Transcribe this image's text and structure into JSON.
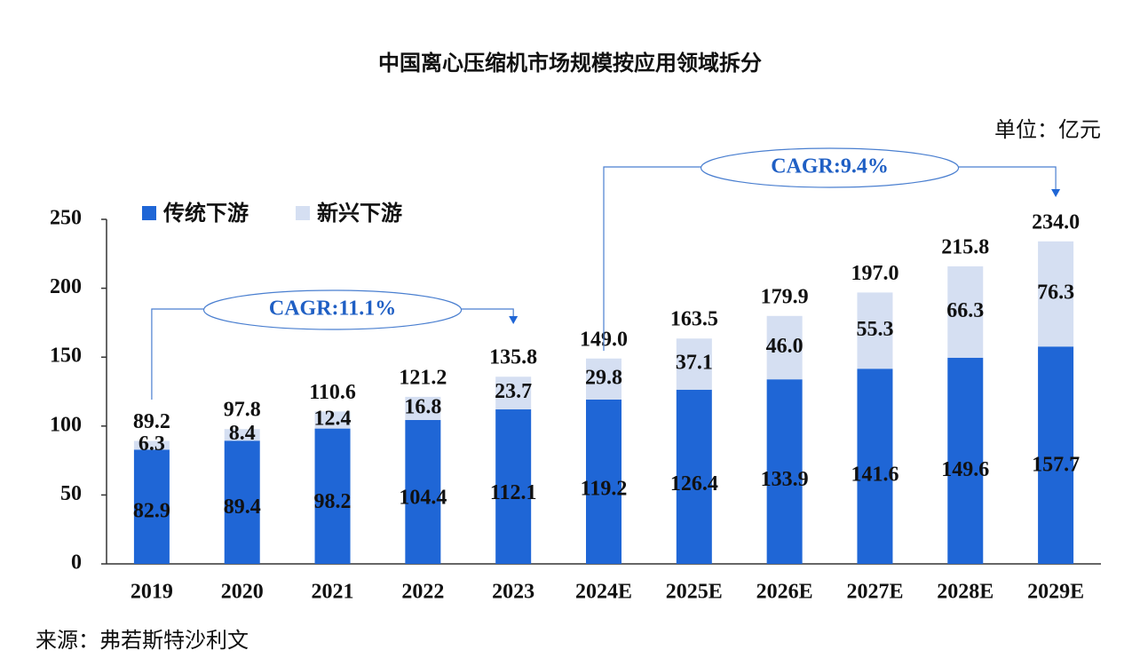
{
  "chart_data": {
    "type": "stacked-bar",
    "title": "中国离心压缩机市场规模按应用领域拆分",
    "unit": "单位：亿元",
    "source": "来源：弗若斯特沙利文",
    "categories": [
      "2019",
      "2020",
      "2021",
      "2022",
      "2023",
      "2024E",
      "2025E",
      "2026E",
      "2027E",
      "2028E",
      "2029E"
    ],
    "series": [
      {
        "name": "传统下游",
        "color": "#1f66d6",
        "values": [
          82.9,
          89.4,
          98.2,
          104.4,
          112.1,
          119.2,
          126.4,
          133.9,
          141.6,
          149.6,
          157.7
        ]
      },
      {
        "name": "新兴下游",
        "color": "#d5dff2",
        "values": [
          6.3,
          8.4,
          12.4,
          16.8,
          23.7,
          29.8,
          37.1,
          46.0,
          55.3,
          66.3,
          76.3
        ],
        "value_labels": [
          "6.3",
          "8.4",
          "12.4",
          "16.8",
          "23.7",
          "29.8",
          "37.1",
          "46.0",
          "55.3",
          "66.3",
          "76.3"
        ]
      }
    ],
    "totals": [
      89.2,
      97.8,
      110.6,
      121.2,
      135.8,
      149.0,
      163.5,
      179.9,
      197.0,
      215.8,
      234.0
    ],
    "total_labels": [
      "89.2",
      "97.8",
      "110.6",
      "121.2",
      "135.8",
      "149.0",
      "163.5",
      "179.9",
      "197.0",
      "215.8",
      "234.0"
    ],
    "annotations": [
      "CAGR:11.1%",
      "CAGR:9.4%"
    ],
    "ylim": [
      0,
      250
    ],
    "yticks": [
      0,
      50,
      100,
      150,
      200,
      250
    ]
  }
}
